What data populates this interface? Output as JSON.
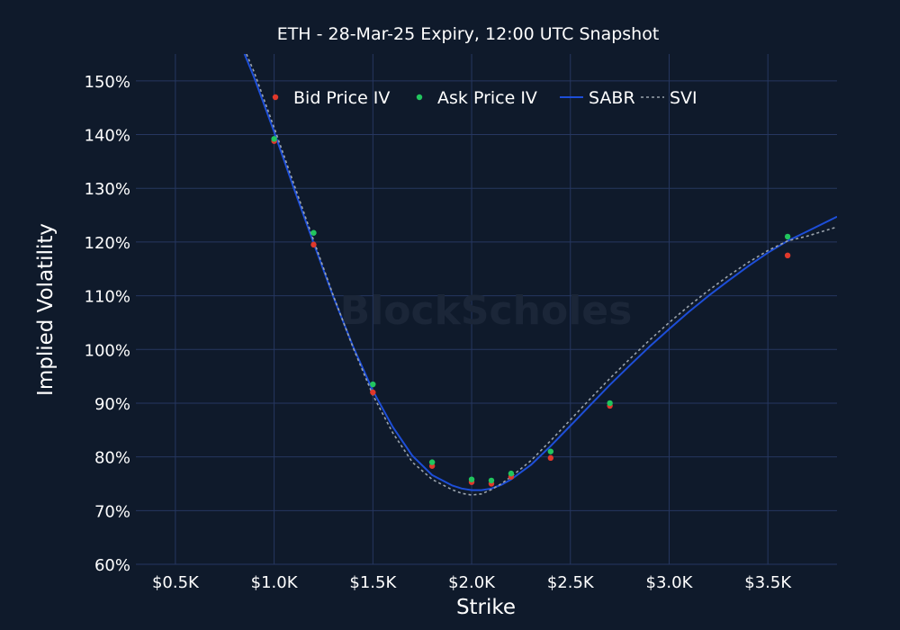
{
  "chart_data": {
    "type": "scatter",
    "title": "ETH - 28-Mar-25 Expiry, 12:00 UTC Snapshot",
    "xlabel": "Strike",
    "ylabel": "Implied Volatility",
    "watermark": "BlockScholes",
    "xlim": [
      300,
      3850
    ],
    "ylim": [
      60,
      155
    ],
    "x_ticks": [
      500,
      1000,
      1500,
      2000,
      2500,
      3000,
      3500
    ],
    "x_tick_labels": [
      "$0.5K",
      "$1.0K",
      "$1.5K",
      "$2.0K",
      "$2.5K",
      "$3.0K",
      "$3.5K"
    ],
    "y_ticks": [
      60,
      70,
      80,
      90,
      100,
      110,
      120,
      130,
      140,
      150
    ],
    "y_tick_labels": [
      "60%",
      "70%",
      "80%",
      "90%",
      "100%",
      "110%",
      "120%",
      "130%",
      "140%",
      "150%"
    ],
    "grid": true,
    "legend_position": "top-center",
    "series": [
      {
        "name": "Bid Price IV",
        "kind": "scatter",
        "color": "#e0382b",
        "x": [
          1000,
          1200,
          1500,
          1800,
          2000,
          2100,
          2200,
          2400,
          2700,
          3600
        ],
        "y": [
          138.8,
          119.5,
          92.0,
          78.3,
          75.3,
          75.0,
          76.3,
          79.8,
          89.5,
          117.5
        ]
      },
      {
        "name": "Ask Price IV",
        "kind": "scatter",
        "color": "#22c55e",
        "x": [
          1000,
          1200,
          1500,
          1800,
          2000,
          2100,
          2200,
          2400,
          2700,
          3600
        ],
        "y": [
          139.2,
          121.7,
          93.5,
          79.0,
          75.8,
          75.6,
          76.9,
          81.0,
          90.0,
          121.0
        ]
      },
      {
        "name": "SABR",
        "kind": "line",
        "color": "#1d4ed8",
        "x": [
          850,
          900,
          1000,
          1100,
          1200,
          1300,
          1400,
          1500,
          1600,
          1700,
          1800,
          1900,
          1950,
          2000,
          2050,
          2100,
          2150,
          2200,
          2300,
          2400,
          2500,
          2600,
          2700,
          2800,
          2900,
          3000,
          3100,
          3200,
          3300,
          3400,
          3500,
          3600,
          3700,
          3850
        ],
        "y": [
          155,
          150.5,
          140.5,
          130.0,
          119.8,
          109.8,
          100.5,
          92.3,
          85.6,
          80.2,
          76.6,
          74.7,
          74.1,
          73.8,
          73.8,
          74.1,
          74.8,
          75.8,
          78.5,
          82.0,
          85.8,
          89.6,
          93.4,
          97.0,
          100.5,
          103.8,
          107.0,
          110.0,
          112.8,
          115.5,
          118.0,
          120.2,
          122.0,
          124.7
        ]
      },
      {
        "name": "SVI",
        "kind": "line",
        "dash": true,
        "color": "#9aa3ad",
        "x": [
          860,
          900,
          1000,
          1100,
          1200,
          1300,
          1400,
          1500,
          1600,
          1700,
          1800,
          1900,
          1950,
          2000,
          2050,
          2100,
          2150,
          2200,
          2300,
          2400,
          2500,
          2600,
          2700,
          2800,
          2900,
          3000,
          3100,
          3200,
          3300,
          3400,
          3500,
          3600,
          3700,
          3850
        ],
        "y": [
          155,
          151.5,
          141.3,
          130.8,
          120.3,
          110.0,
          100.3,
          91.5,
          84.5,
          79.0,
          75.8,
          73.9,
          73.2,
          72.9,
          73.1,
          73.9,
          75.0,
          76.3,
          79.3,
          83.0,
          86.9,
          90.8,
          94.6,
          98.2,
          101.7,
          105.0,
          108.1,
          111.0,
          113.7,
          116.2,
          118.4,
          120.2,
          121.1,
          122.8
        ]
      }
    ]
  }
}
